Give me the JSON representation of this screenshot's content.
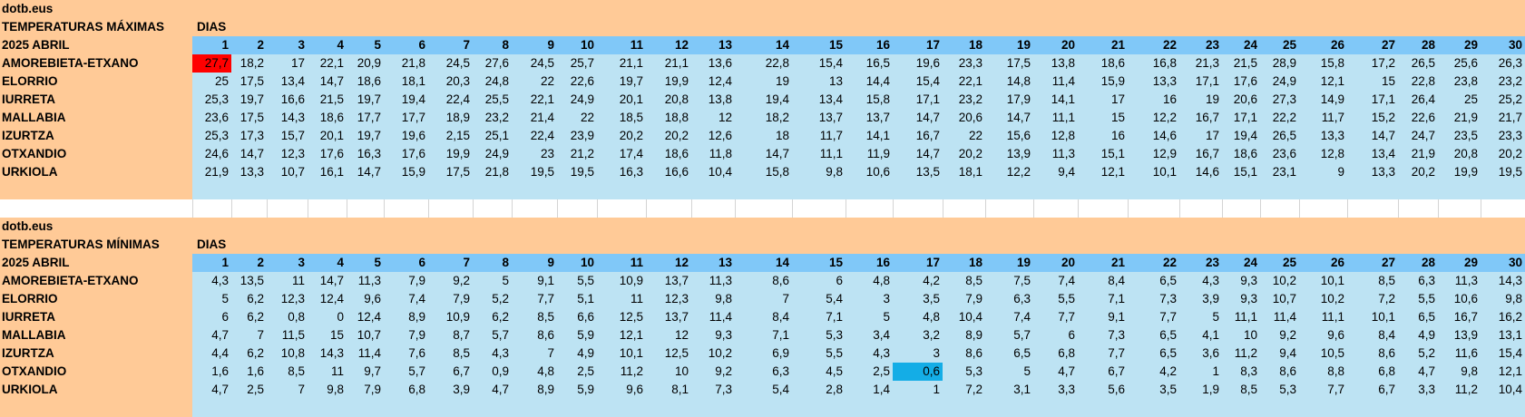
{
  "tables": [
    {
      "site": "dotb.eus",
      "title": "TEMPERATURAS MÁXIMAS",
      "days_label": "DIAS",
      "period": "2025 ABRIL",
      "days": [
        "1",
        "2",
        "3",
        "4",
        "5",
        "6",
        "7",
        "8",
        "9",
        "10",
        "11",
        "12",
        "13",
        "14",
        "15",
        "16",
        "17",
        "18",
        "19",
        "20",
        "21",
        "22",
        "23",
        "24",
        "25",
        "26",
        "27",
        "28",
        "29",
        "30"
      ],
      "rows": [
        {
          "station": "AMOREBIETA-ETXANO",
          "values": [
            "27,7",
            "18,2",
            "17",
            "22,1",
            "20,9",
            "21,8",
            "24,5",
            "27,6",
            "24,5",
            "25,7",
            "21,1",
            "21,1",
            "13,6",
            "22,8",
            "15,4",
            "16,5",
            "19,6",
            "23,3",
            "17,5",
            "13,8",
            "18,6",
            "16,8",
            "21,3",
            "21,5",
            "28,9",
            "15,8",
            "17,2",
            "26,5",
            "25,6",
            "26,3"
          ]
        },
        {
          "station": "ELORRIO",
          "values": [
            "25",
            "17,5",
            "13,4",
            "14,7",
            "18,6",
            "18,1",
            "20,3",
            "24,8",
            "22",
            "22,6",
            "19,7",
            "19,9",
            "12,4",
            "19",
            "13",
            "14,4",
            "15,4",
            "22,1",
            "14,8",
            "11,4",
            "15,9",
            "13,3",
            "17,1",
            "17,6",
            "24,9",
            "12,1",
            "15",
            "22,8",
            "23,8",
            "23,2"
          ]
        },
        {
          "station": "IURRETA",
          "values": [
            "25,3",
            "19,7",
            "16,6",
            "21,5",
            "19,7",
            "19,4",
            "22,4",
            "25,5",
            "22,1",
            "24,9",
            "20,1",
            "20,8",
            "13,8",
            "19,4",
            "13,4",
            "15,8",
            "17,1",
            "23,2",
            "17,9",
            "14,1",
            "17",
            "16",
            "19",
            "20,6",
            "27,3",
            "14,9",
            "17,1",
            "26,4",
            "25",
            "25,2"
          ]
        },
        {
          "station": "MALLABIA",
          "values": [
            "23,6",
            "17,5",
            "14,3",
            "18,6",
            "17,7",
            "17,7",
            "18,9",
            "23,2",
            "21,4",
            "22",
            "18,5",
            "18,8",
            "12",
            "18,2",
            "13,7",
            "13,7",
            "14,7",
            "20,6",
            "14,7",
            "11,1",
            "15",
            "12,2",
            "16,7",
            "17,1",
            "22,2",
            "11,7",
            "15,2",
            "22,6",
            "21,9",
            "21,7"
          ]
        },
        {
          "station": "IZURTZA",
          "values": [
            "25,3",
            "17,3",
            "15,7",
            "20,1",
            "19,7",
            "19,6",
            "2,15",
            "25,1",
            "22,4",
            "23,9",
            "20,2",
            "20,2",
            "12,6",
            "18",
            "11,7",
            "14,1",
            "16,7",
            "22",
            "15,6",
            "12,8",
            "16",
            "14,6",
            "17",
            "19,4",
            "26,5",
            "13,3",
            "14,7",
            "24,7",
            "23,5",
            "23,3"
          ]
        },
        {
          "station": "OTXANDIO",
          "values": [
            "24,6",
            "14,7",
            "12,3",
            "17,6",
            "16,3",
            "17,6",
            "19,9",
            "24,9",
            "23",
            "21,2",
            "17,4",
            "18,6",
            "11,8",
            "14,7",
            "11,1",
            "11,9",
            "14,7",
            "20,2",
            "13,9",
            "11,3",
            "15,1",
            "12,9",
            "16,7",
            "18,6",
            "23,6",
            "12,8",
            "13,4",
            "21,9",
            "20,8",
            "20,2"
          ]
        },
        {
          "station": "URKIOLA",
          "values": [
            "21,9",
            "13,3",
            "10,7",
            "16,1",
            "14,7",
            "15,9",
            "17,5",
            "21,8",
            "19,5",
            "19,5",
            "16,3",
            "16,6",
            "10,4",
            "15,8",
            "9,8",
            "10,6",
            "13,5",
            "18,1",
            "12,2",
            "9,4",
            "12,1",
            "10,1",
            "14,6",
            "15,1",
            "23,1",
            "9",
            "13,3",
            "20,2",
            "19,9",
            "19,5"
          ]
        }
      ]
    },
    {
      "site": "dotb.eus",
      "title": "TEMPERATURAS MÍNIMAS",
      "days_label": "DIAS",
      "period": "2025 ABRIL",
      "days": [
        "1",
        "2",
        "3",
        "4",
        "5",
        "6",
        "7",
        "8",
        "9",
        "10",
        "11",
        "12",
        "13",
        "14",
        "15",
        "16",
        "17",
        "18",
        "19",
        "20",
        "21",
        "22",
        "23",
        "24",
        "25",
        "26",
        "27",
        "28",
        "29",
        "30"
      ],
      "rows": [
        {
          "station": "AMOREBIETA-ETXANO",
          "values": [
            "4,3",
            "13,5",
            "11",
            "14,7",
            "11,3",
            "7,9",
            "9,2",
            "5",
            "9,1",
            "5,5",
            "10,9",
            "13,7",
            "11,3",
            "8,6",
            "6",
            "4,8",
            "4,2",
            "8,5",
            "7,5",
            "7,4",
            "8,4",
            "6,5",
            "4,3",
            "9,3",
            "10,2",
            "10,1",
            "8,5",
            "6,3",
            "11,3",
            "14,3"
          ]
        },
        {
          "station": "ELORRIO",
          "values": [
            "5",
            "6,2",
            "12,3",
            "12,4",
            "9,6",
            "7,4",
            "7,9",
            "5,2",
            "7,7",
            "5,1",
            "11",
            "12,3",
            "9,8",
            "7",
            "5,4",
            "3",
            "3,5",
            "7,9",
            "6,3",
            "5,5",
            "7,1",
            "7,3",
            "3,9",
            "9,3",
            "10,7",
            "10,2",
            "7,2",
            "5,5",
            "10,6",
            "9,8"
          ]
        },
        {
          "station": "IURRETA",
          "values": [
            "6",
            "6,2",
            "0,8",
            "0",
            "12,4",
            "8,9",
            "10,9",
            "6,2",
            "8,5",
            "6,6",
            "12,5",
            "13,7",
            "11,4",
            "8,4",
            "7,1",
            "5",
            "4,8",
            "10,4",
            "7,4",
            "7,7",
            "9,1",
            "7,7",
            "5",
            "11,1",
            "11,4",
            "11,1",
            "10,1",
            "6,5",
            "16,7",
            "16,2"
          ]
        },
        {
          "station": "MALLABIA",
          "values": [
            "4,7",
            "7",
            "11,5",
            "15",
            "10,7",
            "7,9",
            "8,7",
            "5,7",
            "8,6",
            "5,9",
            "12,1",
            "12",
            "9,3",
            "7,1",
            "5,3",
            "3,4",
            "3,2",
            "8,9",
            "5,7",
            "6",
            "7,3",
            "6,5",
            "4,1",
            "10",
            "9,2",
            "9,6",
            "8,4",
            "4,9",
            "13,9",
            "13,1"
          ]
        },
        {
          "station": "IZURTZA",
          "values": [
            "4,4",
            "6,2",
            "10,8",
            "14,3",
            "11,4",
            "7,6",
            "8,5",
            "4,3",
            "7",
            "4,9",
            "10,1",
            "12,5",
            "10,2",
            "6,9",
            "5,5",
            "4,3",
            "3",
            "8,6",
            "6,5",
            "6,8",
            "7,7",
            "6,5",
            "3,6",
            "11,2",
            "9,4",
            "10,5",
            "8,6",
            "5,2",
            "11,6",
            "15,4"
          ]
        },
        {
          "station": "OTXANDIO",
          "values": [
            "1,6",
            "1,6",
            "8,5",
            "11",
            "9,7",
            "5,7",
            "6,7",
            "0,9",
            "4,8",
            "2,5",
            "11,2",
            "10",
            "9,2",
            "6,3",
            "4,5",
            "2,5",
            "0,6",
            "5,3",
            "5",
            "4,7",
            "6,7",
            "4,2",
            "1",
            "8,3",
            "8,6",
            "8,8",
            "6,8",
            "4,7",
            "9,8",
            "12,1"
          ]
        },
        {
          "station": "URKIOLA",
          "values": [
            "4,7",
            "2,5",
            "7",
            "9,8",
            "7,9",
            "6,8",
            "3,9",
            "4,7",
            "8,9",
            "5,9",
            "9,6",
            "8,1",
            "7,3",
            "5,4",
            "2,8",
            "1,4",
            "1",
            "7,2",
            "3,1",
            "3,3",
            "5,6",
            "3,5",
            "1,9",
            "8,5",
            "5,3",
            "7,7",
            "6,7",
            "3,3",
            "11,2",
            "10,4"
          ]
        }
      ]
    }
  ]
}
